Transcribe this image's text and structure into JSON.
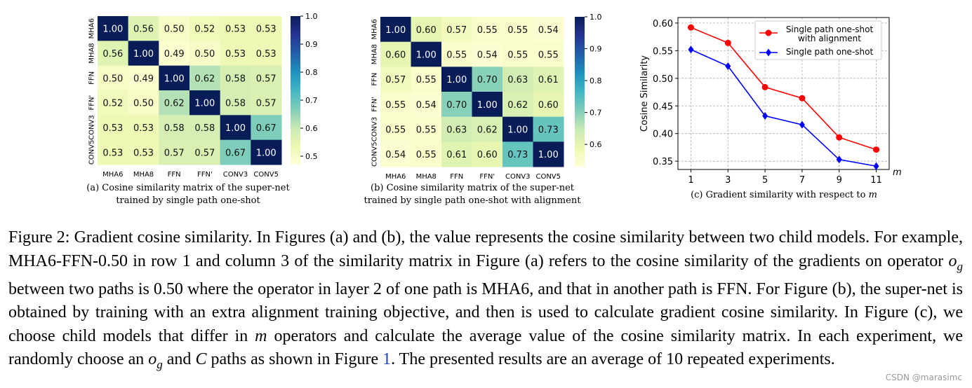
{
  "chart_data": [
    {
      "type": "heatmap",
      "id": "a",
      "row_labels": [
        "MHA6",
        "MHA8",
        "FFN",
        "FFN'",
        "CONV3",
        "CONV5"
      ],
      "col_labels": [
        "MHA6",
        "MHA8",
        "FFN",
        "FFN'",
        "CONV3",
        "CONV5"
      ],
      "values": [
        [
          1.0,
          0.56,
          0.5,
          0.52,
          0.53,
          0.53
        ],
        [
          0.56,
          1.0,
          0.49,
          0.5,
          0.53,
          0.53
        ],
        [
          0.5,
          0.49,
          1.0,
          0.62,
          0.58,
          0.57
        ],
        [
          0.52,
          0.5,
          0.62,
          1.0,
          0.58,
          0.57
        ],
        [
          0.53,
          0.53,
          0.58,
          0.58,
          1.0,
          0.67
        ],
        [
          0.53,
          0.53,
          0.57,
          0.57,
          0.67,
          1.0
        ]
      ],
      "colorbar_range": [
        0.47,
        1.0
      ],
      "colorbar_ticks": [
        1.0,
        0.9,
        0.8,
        0.7,
        0.6,
        0.5
      ],
      "colormap": "YlGnBu",
      "caption_lines": [
        "(a) Cosine similarity matrix of the super-net",
        "trained by single path one-shot"
      ]
    },
    {
      "type": "heatmap",
      "id": "b",
      "row_labels": [
        "MHA6",
        "MHA8",
        "FFN",
        "FFN'",
        "CONV3",
        "CONV5"
      ],
      "col_labels": [
        "MHA6",
        "MHA8",
        "FFN",
        "FFN'",
        "CONV3",
        "CONV5"
      ],
      "values": [
        [
          1.0,
          0.6,
          0.57,
          0.55,
          0.55,
          0.54
        ],
        [
          0.6,
          1.0,
          0.55,
          0.54,
          0.55,
          0.55
        ],
        [
          0.57,
          0.55,
          1.0,
          0.7,
          0.63,
          0.61
        ],
        [
          0.55,
          0.54,
          0.7,
          1.0,
          0.62,
          0.6
        ],
        [
          0.55,
          0.55,
          0.63,
          0.62,
          1.0,
          0.73
        ],
        [
          0.54,
          0.55,
          0.61,
          0.6,
          0.73,
          1.0
        ]
      ],
      "colorbar_range": [
        0.53,
        1.0
      ],
      "colorbar_ticks": [
        1.0,
        0.9,
        0.8,
        0.7,
        0.6
      ],
      "colormap": "YlGnBu",
      "caption_lines": [
        "(b) Cosine similarity matrix of the super-net",
        "trained by single path one-shot with alignment"
      ]
    },
    {
      "type": "line",
      "id": "c",
      "x": [
        1,
        3,
        5,
        7,
        9,
        11
      ],
      "xlabel": "m",
      "ylabel": "Cosine Similarity",
      "ylim": [
        0.335,
        0.61
      ],
      "yticks": [
        0.35,
        0.4,
        0.45,
        0.5,
        0.55,
        0.6
      ],
      "grid": true,
      "legend_position": "top-right",
      "series": [
        {
          "name_lines": [
            "Single path one-shot",
            "with alignment"
          ],
          "color": "#ff0000",
          "marker": "circle",
          "values": [
            0.592,
            0.564,
            0.484,
            0.464,
            0.393,
            0.371
          ]
        },
        {
          "name_lines": [
            "Single path one-shot"
          ],
          "color": "#0000ff",
          "marker": "diamond",
          "values": [
            0.552,
            0.522,
            0.432,
            0.416,
            0.353,
            0.341
          ]
        }
      ],
      "caption_prefix": "(c) Gradient similarity with respect to ",
      "caption_var": "m"
    }
  ],
  "caption": {
    "parts": [
      {
        "t": "Figure 2: Gradient cosine similarity. In Figures (a) and (b), the value represents the cosine similarity between two child models. For example, MHA6-FFN-0.50 in row 1 and column 3 of the similarity matrix in Figure (a) refers to the cosine similarity of the gradients on operator "
      },
      {
        "t": "o",
        "i": true
      },
      {
        "t": "g",
        "sub": true
      },
      {
        "t": " between two paths is 0.50 where the operator in layer 2 of one path is MHA6, and that in another path is FFN. For Figure (b), the super-net is obtained by training with an extra alignment training objective, and then is used to calculate gradient cosine similarity. In Figure (c), we choose child models that differ in "
      },
      {
        "t": "m",
        "i": true
      },
      {
        "t": " operators and calculate the average value of the cosine similarity matrix. In each experiment, we randomly choose an "
      },
      {
        "t": "o",
        "i": true
      },
      {
        "t": "g",
        "sub": true
      },
      {
        "t": " and "
      },
      {
        "t": "C",
        "i": true
      },
      {
        "t": " paths as shown in Figure "
      },
      {
        "t": "1",
        "link": true
      },
      {
        "t": ". The presented results are an average of 10 repeated experiments."
      }
    ]
  },
  "watermark": "CSDN @marasimc"
}
